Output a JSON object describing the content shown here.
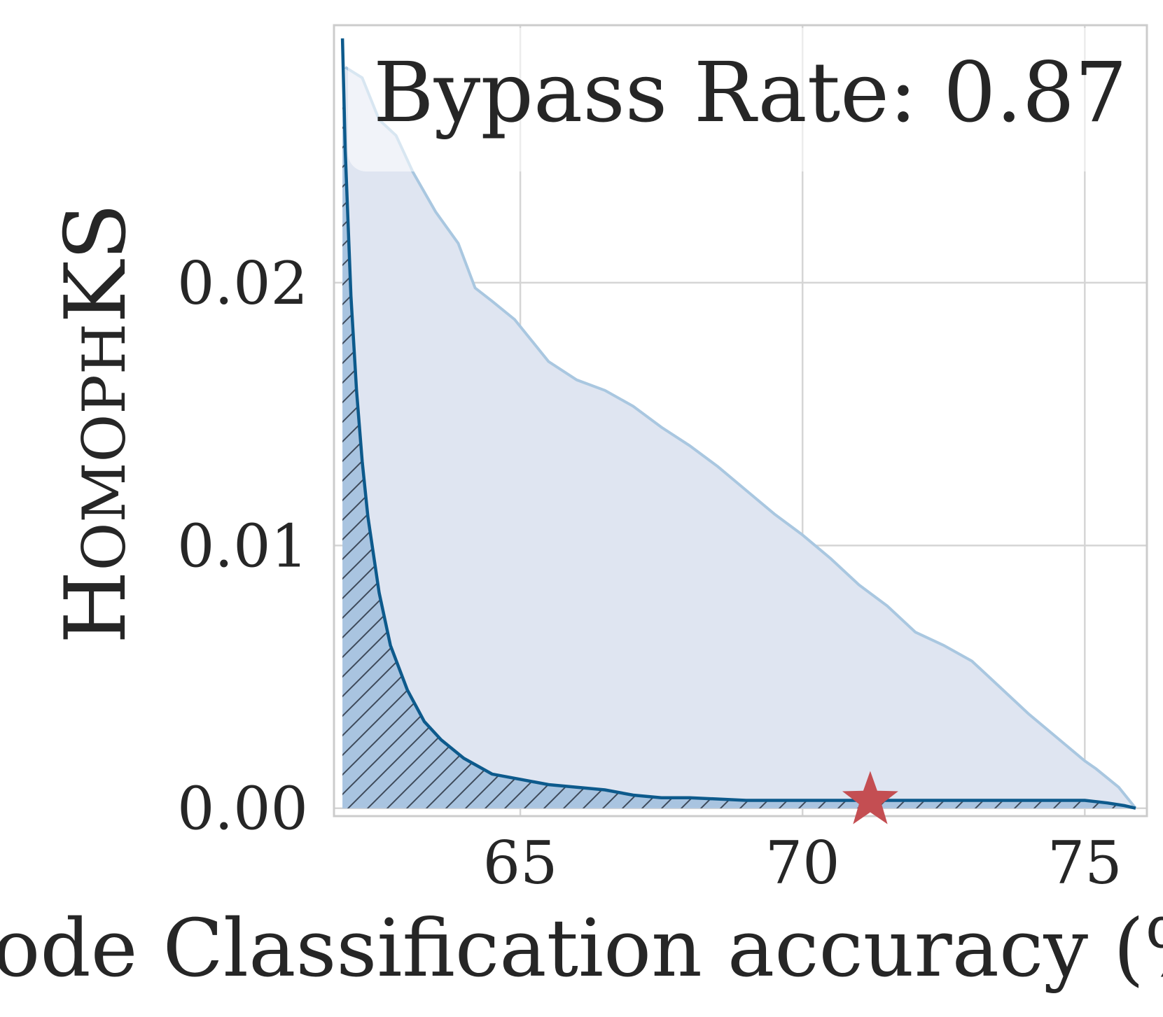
{
  "chart_data": {
    "type": "area",
    "xlabel": "Node Classification accuracy (%)",
    "ylabel": "HomophKS",
    "annotation": "Bypass Rate: 0.87",
    "xlim": [
      61.7,
      76.1
    ],
    "ylim": [
      -0.0003,
      0.0298
    ],
    "xticks": [
      65,
      70,
      75
    ],
    "xtick_labels": [
      "65",
      "70",
      "75"
    ],
    "yticks": [
      0.0,
      0.01,
      0.02
    ],
    "ytick_labels": [
      "0.00",
      "0.01",
      "0.02"
    ],
    "grid": true,
    "series": [
      {
        "role": "upper-envelope",
        "x": [
          61.9,
          62.2,
          62.5,
          62.8,
          63.1,
          63.5,
          63.9,
          64.2,
          64.5,
          64.9,
          65.5,
          66.0,
          66.5,
          67.0,
          67.5,
          68.0,
          68.5,
          69.0,
          69.5,
          70.0,
          70.5,
          71.0,
          71.5,
          72.0,
          72.5,
          73.0,
          73.5,
          74.0,
          74.5,
          75.0,
          75.2,
          75.6,
          75.9
        ],
        "y": [
          0.0282,
          0.0278,
          0.0262,
          0.0256,
          0.0242,
          0.0227,
          0.0215,
          0.0198,
          0.0193,
          0.0186,
          0.017,
          0.0163,
          0.0159,
          0.0153,
          0.0145,
          0.0138,
          0.013,
          0.0121,
          0.0112,
          0.0104,
          0.0095,
          0.0085,
          0.0077,
          0.0067,
          0.0062,
          0.0056,
          0.0046,
          0.0036,
          0.0027,
          0.0018,
          0.0015,
          0.0008,
          0.0
        ],
        "color": "#a9c7e0",
        "fill": "#dfe5f1"
      },
      {
        "role": "frontier",
        "x": [
          61.85,
          61.9,
          62.0,
          62.1,
          62.2,
          62.3,
          62.5,
          62.7,
          63.0,
          63.3,
          63.6,
          64.0,
          64.5,
          65.0,
          65.5,
          66.0,
          66.5,
          67.0,
          67.5,
          68.0,
          69.0,
          70.0,
          71.0,
          72.0,
          73.0,
          74.0,
          75.0,
          75.4,
          75.7,
          75.9
        ],
        "y": [
          0.0293,
          0.025,
          0.0195,
          0.0159,
          0.0132,
          0.0111,
          0.0082,
          0.0062,
          0.0045,
          0.0033,
          0.0026,
          0.0019,
          0.0013,
          0.0011,
          0.0009,
          0.0008,
          0.0007,
          0.0005,
          0.0004,
          0.0004,
          0.0003,
          0.0003,
          0.0003,
          0.0003,
          0.0003,
          0.0003,
          0.0003,
          0.0002,
          0.0001,
          0.0
        ],
        "color": "#0d5a8c",
        "fill": "#a9c4e0",
        "hatch": true
      }
    ],
    "marker": {
      "shape": "star",
      "x": 71.2,
      "y": 0.0003,
      "color": "#c44e52"
    }
  }
}
